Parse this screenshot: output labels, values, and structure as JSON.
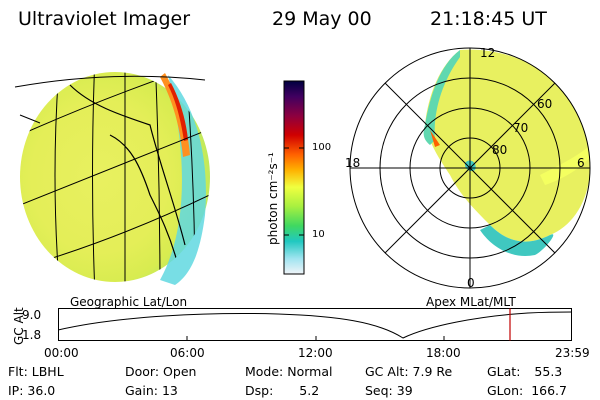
{
  "header": {
    "title": "Ultraviolet Imager",
    "date": "29 May 00",
    "time": "21:18:45 UT"
  },
  "colorbar": {
    "label": "photon cm⁻²s⁻¹",
    "ticks": [
      "100",
      "10"
    ],
    "colors": [
      "#000040",
      "#400060",
      "#8c0040",
      "#d00000",
      "#ff6000",
      "#ffa000",
      "#ffe000",
      "#f0ff40",
      "#b0f040",
      "#60e040",
      "#20d060",
      "#20c0a0",
      "#40d0e0",
      "#a0e8f0",
      "#e8f4f8"
    ]
  },
  "left_panel": {
    "label": "Geographic Lat/Lon"
  },
  "right_panel": {
    "label": "Apex MLat/MLT",
    "mlt_labels": {
      "top": "12",
      "bottom": "0",
      "left": "18",
      "right": "6"
    },
    "lat_labels": [
      "60",
      "70",
      "80"
    ]
  },
  "altitude_plot": {
    "ylabel": "GC Alt",
    "yticks": [
      "9.0",
      "1.8"
    ],
    "xticks": [
      "00:00",
      "06:00",
      "12:00",
      "18:00",
      "23:59"
    ],
    "marker_time": "21:18:45"
  },
  "status": {
    "row1": [
      {
        "key": "Flt:",
        "value": "LBHL"
      },
      {
        "key": "Door:",
        "value": "Open"
      },
      {
        "key": "Mode:",
        "value": "Normal"
      },
      {
        "key": "GC Alt:",
        "value": "7.9 Re"
      },
      {
        "key": "GLat:",
        "value": "55.3"
      }
    ],
    "row2": [
      {
        "key": "IP:",
        "value": "36.0"
      },
      {
        "key": "Gain:",
        "value": "13"
      },
      {
        "key": "Dsp:",
        "value": "5.2"
      },
      {
        "key": "Seq:",
        "value": "39"
      },
      {
        "key": "GLon:",
        "value": "166.7"
      }
    ]
  }
}
